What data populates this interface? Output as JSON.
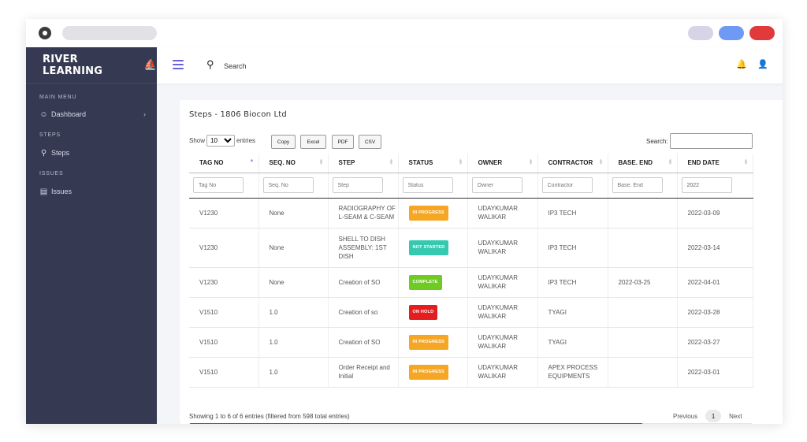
{
  "sidebar": {
    "brand": "RIVER LEARNING",
    "main_menu": "MAIN MENU",
    "dashboard": "Dashboard",
    "steps_head": "STEPS",
    "steps": "Steps",
    "issues_head": "ISSUES",
    "issues": "Issues"
  },
  "topbar": {
    "search_label": "Search"
  },
  "card": {
    "title": "Steps - 1806 Biocon Ltd",
    "show_prefix": "Show",
    "show_value": "10",
    "show_suffix": "entries",
    "buttons": {
      "copy": "Copy",
      "excel": "Excel",
      "pdf": "PDF",
      "csv": "CSV"
    },
    "search_label": "Search:"
  },
  "table": {
    "headers": [
      "TAG NO",
      "SEQ. NO",
      "STEP",
      "STATUS",
      "OWNER",
      "CONTRACTOR",
      "BASE. END",
      "END DATE"
    ],
    "filters": [
      "Tag No",
      "Seq. No",
      "Step",
      "Status",
      "Owner",
      "Contractor",
      "Base. End"
    ],
    "filter_end_value": "2022",
    "rows": [
      {
        "tag": "V1230",
        "seq": "None",
        "step": "RADIOGRAPHY OF L-SEAM & C-SEAM",
        "status": "IN PROGRESS",
        "owner": "UDAYKUMAR WALIKAR",
        "contractor": "IP3 TECH",
        "base": "",
        "end": "2022-03-09"
      },
      {
        "tag": "V1230",
        "seq": "None",
        "step": "SHELL TO DISH ASSEMBLY: 1ST DISH",
        "status": "NOT STARTED",
        "owner": "UDAYKUMAR WALIKAR",
        "contractor": "IP3 TECH",
        "base": "",
        "end": "2022-03-14"
      },
      {
        "tag": "V1230",
        "seq": "None",
        "step": "Creation of SO",
        "status": "COMPLETE",
        "owner": "UDAYKUMAR WALIKAR",
        "contractor": "IP3 TECH",
        "base": "2022-03-25",
        "end": "2022-04-01"
      },
      {
        "tag": "V1510",
        "seq": "1.0",
        "step": "Creation of so",
        "status": "ON HOLD",
        "owner": "UDAYKUMAR WALIKAR",
        "contractor": "TYAGI",
        "base": "",
        "end": "2022-03-28"
      },
      {
        "tag": "V1510",
        "seq": "1.0",
        "step": "Creation of SO",
        "status": "IN PROGRESS",
        "owner": "UDAYKUMAR WALIKAR",
        "contractor": "TYAGI",
        "base": "",
        "end": "2022-03-27"
      },
      {
        "tag": "V1510",
        "seq": "1.0",
        "step": "Order Receipt and Initial",
        "status": "IN PROGRESS",
        "owner": "UDAYKUMAR WALIKAR",
        "contractor": "APEX PROCESS EQUIPMENTS",
        "base": "",
        "end": "2022-03-01"
      }
    ]
  },
  "footer": {
    "info": "Showing 1 to 6 of 6 entries (filtered from 598 total entries)",
    "previous": "Previous",
    "page": "1",
    "next": "Next"
  },
  "colors": {
    "sidebar_bg": "#353a52",
    "accent": "#6b63d9",
    "in_progress": "#f6a623",
    "not_started": "#35c9b0",
    "complete": "#6fcb24",
    "on_hold": "#e41e1e"
  }
}
